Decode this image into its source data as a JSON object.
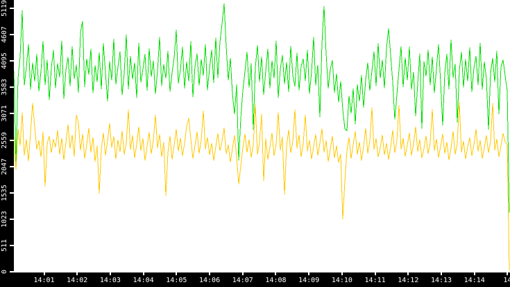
{
  "style": {
    "plot_background": "#ffffff",
    "axis_background": "#000000",
    "tick_color": "#ffffff",
    "label_color": "#ffffff"
  },
  "chart_data": {
    "type": "line",
    "title": "",
    "xlabel": "",
    "ylabel": "",
    "grid": false,
    "legend": "none",
    "ylim": [
      0,
      5280
    ],
    "x_axis": {
      "tick_labels": [
        "14:01",
        "14:02",
        "14:03",
        "14:04",
        "14:05",
        "14:06",
        "14:07",
        "14:08",
        "14:09",
        "14:10",
        "14:11",
        "14:12",
        "14:13",
        "14:14",
        "14"
      ]
    },
    "y_axis": {
      "tick_values": [
        0,
        511,
        1023,
        1535,
        2047,
        2559,
        3071,
        3583,
        4095,
        4607,
        5119
      ],
      "tick_labels": [
        "0",
        "511",
        "1023",
        "1535",
        "2047",
        "2559",
        "3071",
        "3583",
        "4095",
        "4607",
        "5119"
      ]
    },
    "series": [
      {
        "name": "series-yellow",
        "color": "#ffc800",
        "values": [
          2620,
          1980,
          2780,
          2450,
          3100,
          2260,
          2570,
          2150,
          2690,
          3280,
          2810,
          2380,
          2550,
          2230,
          2720,
          1660,
          2490,
          2640,
          2310,
          2580,
          2420,
          2750,
          2280,
          2600,
          2170,
          2510,
          2860,
          2390,
          2660,
          2240,
          3050,
          2900,
          2360,
          2680,
          2200,
          2470,
          2790,
          2320,
          2610,
          2140,
          2450,
          1520,
          2380,
          2700,
          2260,
          2540,
          2890,
          2410,
          2630,
          2190,
          2560,
          2330,
          2740,
          2280,
          2500,
          3150,
          2370,
          2650,
          2210,
          2480,
          2820,
          2350,
          2590,
          2160,
          2440,
          2710,
          2290,
          2550,
          3050,
          2400,
          2670,
          2230,
          2520,
          1480,
          2310,
          2640,
          2180,
          2460,
          2770,
          2340,
          2600,
          2250,
          2490,
          2830,
          2990,
          2580,
          2200,
          2450,
          2720,
          2300,
          2560,
          3130,
          2380,
          2610,
          2270,
          2500,
          2160,
          2430,
          2690,
          2350,
          2540,
          2800,
          2290,
          2470,
          2130,
          2390,
          2650,
          2240,
          1700,
          2060,
          2410,
          2680,
          2320,
          2570,
          2220,
          2460,
          3260,
          2280,
          2510,
          3070,
          1760,
          2590,
          2180,
          2420,
          2700,
          2250,
          2480,
          3100,
          2360,
          2620,
          1500,
          2440,
          2760,
          2310,
          2530,
          3150,
          2400,
          2660,
          2230,
          2490,
          3050,
          2340,
          2560,
          2190,
          2430,
          2670,
          2260,
          2500,
          2780,
          2320,
          2550,
          2140,
          2380,
          2640,
          2210,
          2450,
          2120,
          2290,
          1020,
          1760,
          2350,
          2610,
          2200,
          2470,
          2730,
          2280,
          2520,
          2160,
          2440,
          2790,
          2300,
          2540,
          3190,
          2370,
          2590,
          2230,
          2410,
          2660,
          2270,
          2500,
          2180,
          2420,
          2750,
          2310,
          2550,
          3240,
          2380,
          2600,
          2240,
          2460,
          2700,
          2260,
          2480,
          2820,
          2330,
          2570,
          2210,
          2390,
          2640,
          2290,
          2510,
          3160,
          2350,
          2580,
          2220,
          2440,
          2680,
          2300,
          2520,
          2170,
          2400,
          2730,
          2280,
          2490,
          3300,
          2320,
          2540,
          2190,
          2430,
          2610,
          2250,
          2470,
          2770,
          2340,
          2560,
          2200,
          2410,
          2650,
          2310,
          2530,
          3280,
          2360,
          2580,
          2230,
          2450,
          2690,
          2520,
          2470,
          30
        ]
      },
      {
        "name": "series-green",
        "color": "#00dc00",
        "values": [
          3900,
          2140,
          3760,
          4180,
          5080,
          3620,
          3980,
          4420,
          3540,
          4060,
          3700,
          4230,
          3510,
          3890,
          4480,
          3630,
          4120,
          3340,
          3960,
          4310,
          3570,
          4050,
          3780,
          4490,
          3360,
          3920,
          4170,
          3610,
          4380,
          3750,
          4020,
          3480,
          4650,
          4870,
          3590,
          4140,
          3830,
          4330,
          3470,
          4010,
          3690,
          4260,
          3550,
          4440,
          3870,
          3310,
          4090,
          3720,
          4520,
          3640,
          3980,
          4280,
          3430,
          3860,
          4610,
          3550,
          4190,
          3740,
          4060,
          3380,
          4450,
          3680,
          3940,
          4230,
          3520,
          4340,
          3790,
          4100,
          3450,
          3900,
          4560,
          3610,
          4030,
          3760,
          4290,
          3500,
          3870,
          4160,
          4700,
          3660,
          3930,
          4370,
          3560,
          4080,
          3700,
          4480,
          3390,
          3990,
          4240,
          3620,
          4130,
          3810,
          4420,
          3530,
          3950,
          4310,
          3670,
          4550,
          3770,
          4460,
          4820,
          5210,
          4380,
          3720,
          4150,
          3460,
          3060,
          3640,
          2160,
          2980,
          3520,
          3890,
          4270,
          3580,
          4050,
          2760,
          3970,
          4400,
          3690,
          4180,
          3440,
          3900,
          4330,
          3570,
          4100,
          3760,
          4490,
          3380,
          3940,
          4210,
          3650,
          4070,
          3490,
          4390,
          3810,
          3600,
          4250,
          3530,
          3990,
          4140,
          3710,
          4310,
          3460,
          3880,
          4560,
          3620,
          4020,
          3000,
          4430,
          5160,
          4240,
          3560,
          3930,
          4110,
          3480,
          3850,
          3290,
          3700,
          3150,
          2780,
          2740,
          3420,
          3080,
          3560,
          2870,
          3640,
          3310,
          3820,
          3190,
          3730,
          4060,
          3520,
          3900,
          4280,
          3610,
          4440,
          3760,
          4120,
          3570,
          4340,
          4730,
          4210,
          3680,
          2960,
          3440,
          3930,
          4380,
          3590,
          4160,
          3720,
          4370,
          3540,
          3880,
          3020,
          3660,
          4240,
          2780,
          4090,
          3800,
          4310,
          3630,
          4180,
          3470,
          3950,
          4420,
          3680,
          2840,
          3860,
          4230,
          3550,
          4510,
          3770,
          4040,
          2900,
          3910,
          4270,
          3580,
          4130,
          3700,
          4360,
          3490,
          3960,
          4190,
          3630,
          4450,
          3540,
          4080,
          3750,
          2760,
          3870,
          4150,
          3690,
          4290,
          3060,
          3980,
          4120,
          3810,
          3520,
          1150
        ]
      }
    ]
  }
}
